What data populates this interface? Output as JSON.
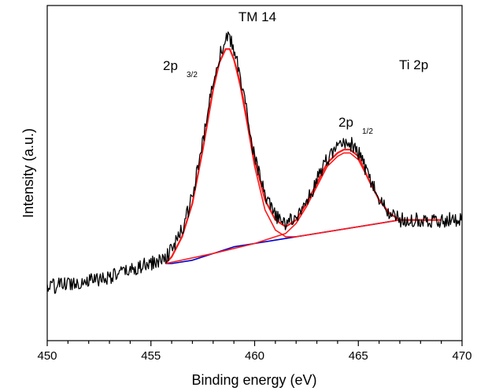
{
  "chart_data": {
    "type": "line",
    "title": "TM 14",
    "xlabel": "Binding energy (eV)",
    "ylabel": "Intensity (a.u.)",
    "xlim": [
      450,
      470
    ],
    "ylim": [
      0,
      1
    ],
    "y_ticks_labeled": false,
    "grid": false,
    "x_ticks": [
      "450",
      "455",
      "460",
      "465",
      "470"
    ],
    "annotations": {
      "element": "Ti 2p",
      "peak1": {
        "main": "2p",
        "sub": "3/2"
      },
      "peak2": {
        "main": "2p",
        "sub": "1/2"
      }
    },
    "series": [
      {
        "role": "raw-spectrum",
        "color": "#000000",
        "x": [
          450,
          451,
          452,
          453,
          454,
          455,
          455.5,
          456,
          456.5,
          457,
          457.5,
          458,
          458.3,
          458.6,
          458.8,
          459,
          459.3,
          459.6,
          460,
          460.5,
          461,
          461.5,
          462,
          462.5,
          463,
          463.5,
          464,
          464.3,
          464.6,
          465,
          465.5,
          466,
          466.5,
          467,
          467.5,
          468,
          469,
          470
        ],
        "y": [
          0.16,
          0.17,
          0.18,
          0.19,
          0.21,
          0.23,
          0.24,
          0.27,
          0.33,
          0.43,
          0.59,
          0.78,
          0.85,
          0.9,
          0.9,
          0.87,
          0.79,
          0.69,
          0.55,
          0.43,
          0.37,
          0.35,
          0.37,
          0.41,
          0.48,
          0.54,
          0.58,
          0.59,
          0.59,
          0.56,
          0.49,
          0.42,
          0.38,
          0.36,
          0.36,
          0.36,
          0.36,
          0.36
        ]
      },
      {
        "role": "fit-envelope",
        "color": "#ff1a1a",
        "x": [
          455.7,
          456,
          456.5,
          457,
          457.5,
          458,
          458.3,
          458.6,
          458.8,
          459,
          459.3,
          459.6,
          460,
          460.5,
          461,
          461.5,
          462,
          462.5,
          463,
          463.5,
          464,
          464.3,
          464.6,
          465,
          465.5,
          466,
          466.5,
          467,
          467.5,
          468,
          469
        ],
        "y": [
          0.23,
          0.25,
          0.31,
          0.41,
          0.57,
          0.75,
          0.83,
          0.87,
          0.87,
          0.84,
          0.77,
          0.67,
          0.54,
          0.42,
          0.36,
          0.34,
          0.36,
          0.41,
          0.47,
          0.53,
          0.56,
          0.57,
          0.57,
          0.55,
          0.48,
          0.42,
          0.38,
          0.36,
          0.36,
          0.36,
          0.36
        ]
      },
      {
        "role": "2p3/2-component",
        "color": "#ff1a1a",
        "x": [
          455.7,
          456,
          456.5,
          457,
          457.5,
          458,
          458.3,
          458.6,
          458.8,
          459,
          459.3,
          459.6,
          460,
          460.5,
          461,
          461.5,
          462,
          463,
          464,
          465,
          466,
          467,
          468,
          469
        ],
        "y": [
          0.23,
          0.25,
          0.31,
          0.41,
          0.57,
          0.75,
          0.83,
          0.87,
          0.87,
          0.84,
          0.76,
          0.66,
          0.52,
          0.39,
          0.33,
          0.31,
          0.31,
          0.32,
          0.33,
          0.34,
          0.35,
          0.36,
          0.36,
          0.36
        ]
      },
      {
        "role": "2p1/2-component",
        "color": "#ff1a1a",
        "x": [
          455.7,
          458,
          460,
          461,
          461.5,
          462,
          462.5,
          463,
          463.5,
          464,
          464.3,
          464.6,
          465,
          465.5,
          466,
          466.5,
          467,
          467.5,
          468,
          469
        ],
        "y": [
          0.23,
          0.26,
          0.29,
          0.31,
          0.32,
          0.35,
          0.4,
          0.46,
          0.52,
          0.55,
          0.56,
          0.56,
          0.54,
          0.48,
          0.42,
          0.38,
          0.36,
          0.36,
          0.36,
          0.36
        ]
      },
      {
        "role": "background",
        "color": "#0000cc",
        "x": [
          455.7,
          456,
          457,
          458,
          459,
          460,
          461,
          462,
          463,
          464,
          465,
          466,
          467,
          468,
          469
        ],
        "y": [
          0.23,
          0.23,
          0.24,
          0.26,
          0.28,
          0.29,
          0.3,
          0.31,
          0.32,
          0.33,
          0.34,
          0.35,
          0.36,
          0.36,
          0.36
        ]
      }
    ]
  }
}
